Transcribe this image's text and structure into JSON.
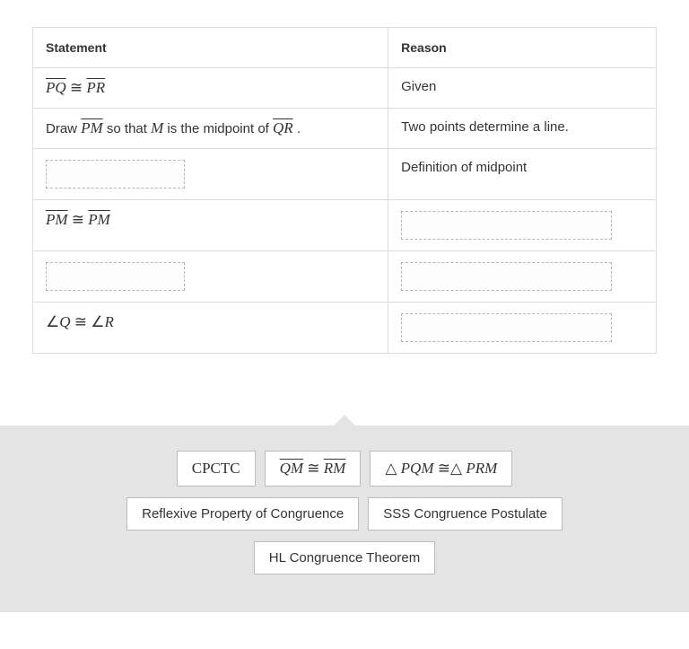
{
  "table": {
    "headers": {
      "statement": "Statement",
      "reason": "Reason"
    },
    "rows": [
      {
        "statement_html": "<span class='math'><span class='overline'>PQ</span> <span class='sym'>≅</span> <span class='overline'>PR</span></span>",
        "reason_text": "Given",
        "statement_drop": false,
        "reason_drop": false
      },
      {
        "statement_html": "Draw <span class='math'><span class='overline'>PM</span></span> so that <span class='math'>M</span> is the midpoint of <span class='math'><span class='overline'>QR</span></span> .",
        "reason_text": "Two points determine a line.",
        "statement_drop": false,
        "reason_drop": false
      },
      {
        "statement_html": "",
        "reason_text": "Definition of midpoint",
        "statement_drop": true,
        "reason_drop": false
      },
      {
        "statement_html": "<span class='math'><span class='overline'>PM</span> <span class='sym'>≅</span> <span class='overline'>PM</span></span>",
        "reason_text": "",
        "statement_drop": false,
        "reason_drop": true
      },
      {
        "statement_html": "",
        "reason_text": "",
        "statement_drop": true,
        "reason_drop": true
      },
      {
        "statement_html": "<span class='math'><span class='sym'>∠</span>Q <span class='sym'>≅</span> <span class='sym'>∠</span>R</span>",
        "reason_text": "",
        "statement_drop": false,
        "reason_drop": true
      }
    ]
  },
  "options": {
    "row1": [
      {
        "html": "CPCTC"
      },
      {
        "html": "<span class='math'><span class='overline'>QM</span> <span class='sym'>≅</span> <span class='overline'>RM</span></span>"
      },
      {
        "html": "<span class='math'><span class='sym'>△</span> PQM <span class='sym'>≅△</span> PRM</span>"
      }
    ],
    "row2": [
      {
        "html": "<span class='textlabel'>Reflexive Property of Congruence</span>"
      },
      {
        "html": "<span class='textlabel'>SSS Congruence Postulate</span>"
      }
    ],
    "row3": [
      {
        "html": "<span class='textlabel'>HL Congruence Theorem</span>"
      }
    ]
  },
  "colors": {
    "border": "#dcdcdc",
    "drop_border": "#b6b6b6",
    "option_bg": "#e4e4e4",
    "tile_border": "#bcbcbc",
    "text": "#333333"
  }
}
